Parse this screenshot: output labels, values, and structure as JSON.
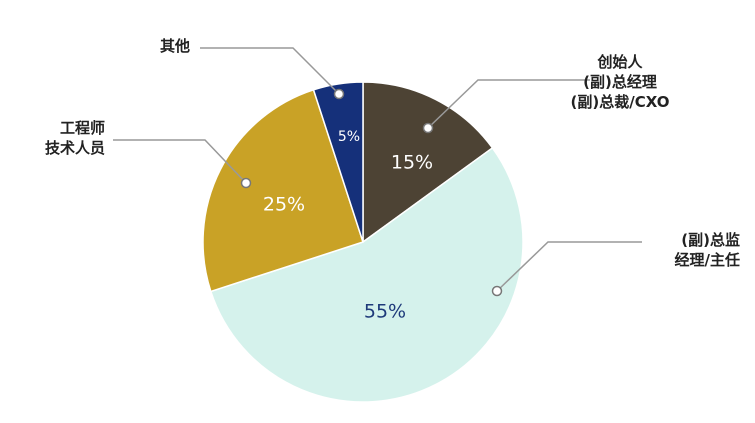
{
  "chart_data": {
    "type": "pie",
    "categories": [
      "创始人\n(副)总经理\n(副)总裁/CXO",
      "(副)总监\n经理/主任",
      "工程师\n技术人员",
      "其他"
    ],
    "values": [
      15,
      55,
      25,
      5
    ],
    "value_labels": [
      "15%",
      "55%",
      "25%",
      "5%"
    ],
    "colors": [
      "#4d4334",
      "#d5f2ec",
      "#c9a226",
      "#15307a"
    ]
  }
}
